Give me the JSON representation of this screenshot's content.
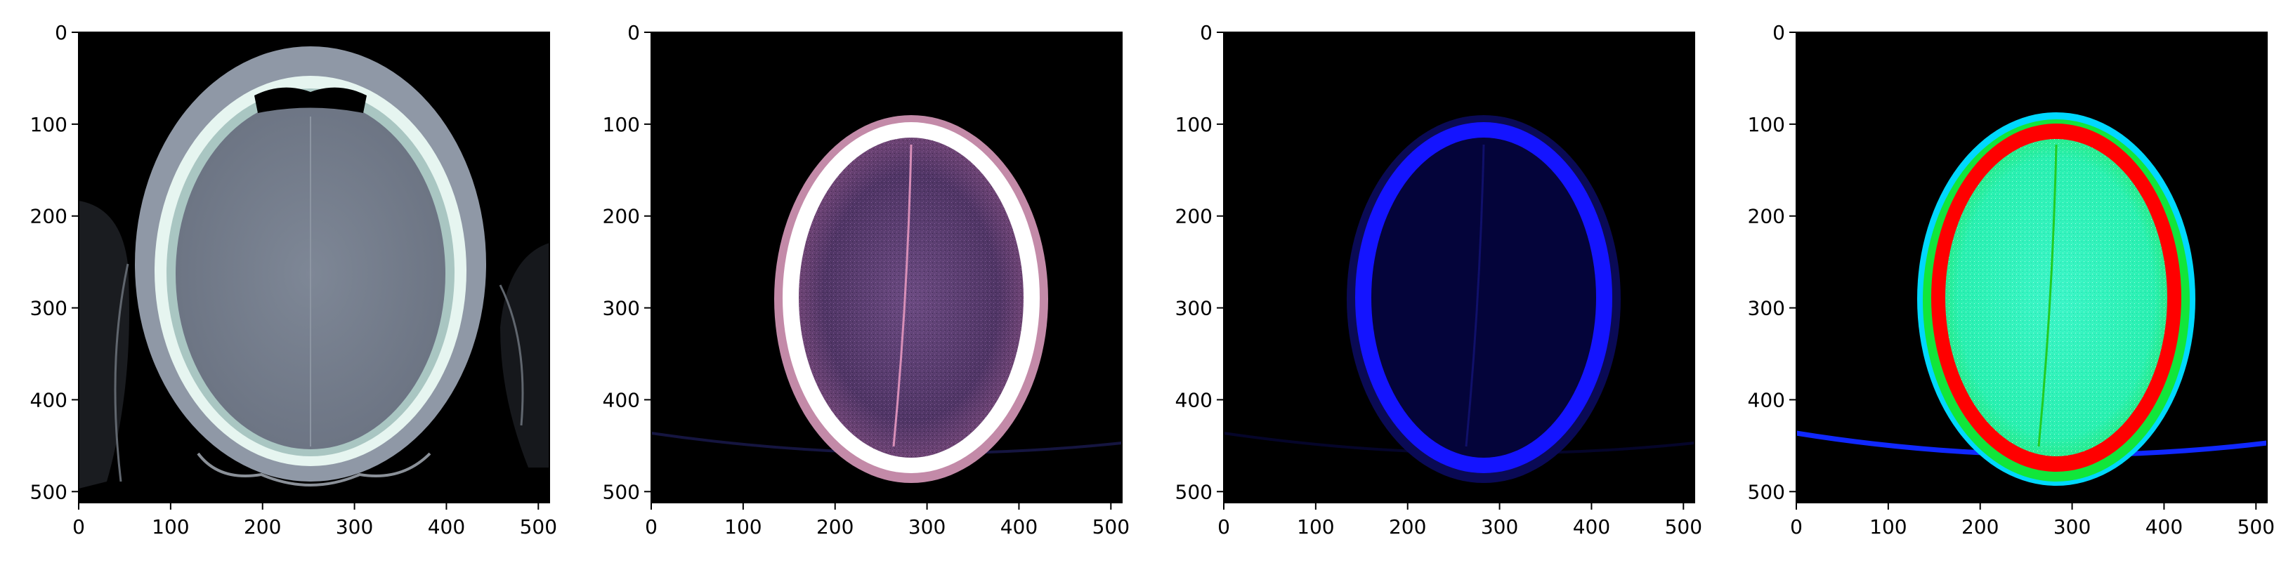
{
  "figure": {
    "panel_count": 4,
    "axis": {
      "x_ticks": [
        "0",
        "100",
        "200",
        "300",
        "400",
        "500"
      ],
      "y_ticks": [
        "0",
        "100",
        "200",
        "300",
        "400",
        "500"
      ],
      "x_range": [
        0,
        512
      ],
      "y_range": [
        0,
        512
      ]
    },
    "panels": [
      {
        "colormap": "bone",
        "content": "axial head CT, full skull with scalp and pillow outline"
      },
      {
        "colormap": "magenta-tinted",
        "content": "brain window, white skull ring"
      },
      {
        "colormap": "blue",
        "content": "blue channel, bright skull ring"
      },
      {
        "colormap": "jet-like",
        "content": "red skull ring, green/cyan brain"
      }
    ],
    "colors": {
      "background": "#000000",
      "frame": "#000000",
      "page": "#ffffff"
    }
  }
}
